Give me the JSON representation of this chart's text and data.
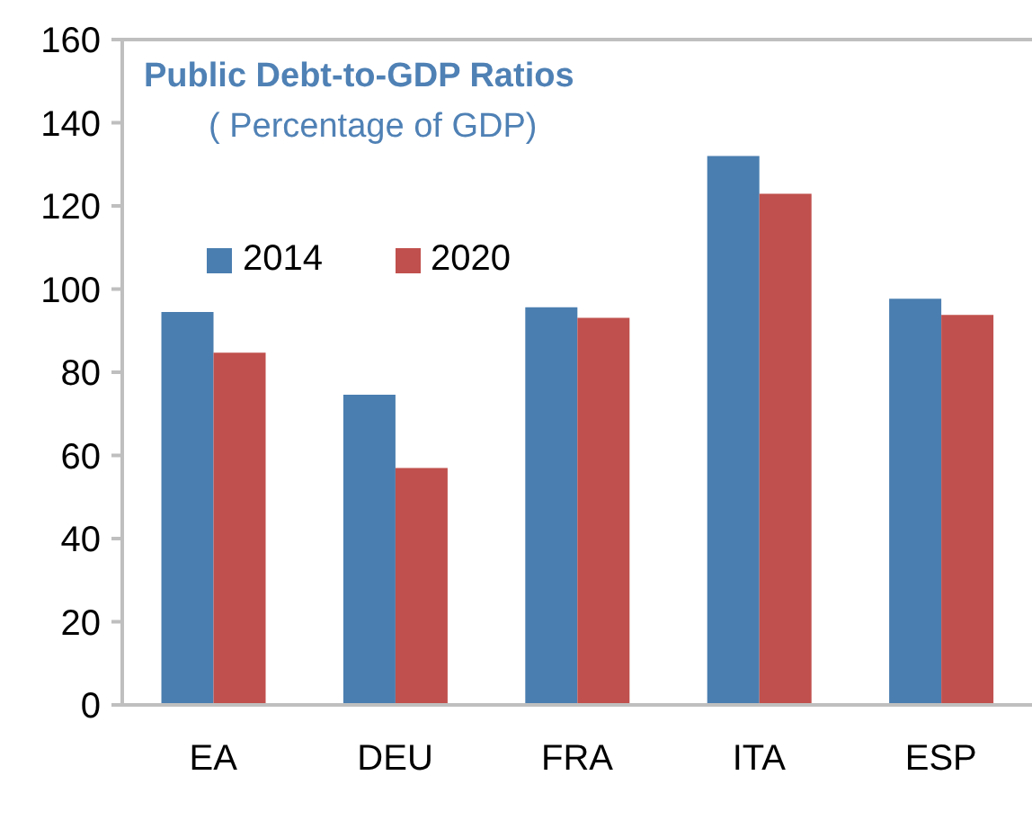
{
  "chart_data": {
    "type": "bar",
    "title": "Public Debt-to-GDP Ratios",
    "subtitle": "( Percentage of GDP)",
    "categories": [
      "EA",
      "DEU",
      "FRA",
      "ITA",
      "ESP"
    ],
    "series": [
      {
        "name": "2014",
        "color": "#4a7eb0",
        "values": [
          94.5,
          74.6,
          95.6,
          132.0,
          97.7
        ]
      },
      {
        "name": "2020",
        "color": "#c0504d",
        "values": [
          84.7,
          57.0,
          93.1,
          122.9,
          93.8
        ]
      }
    ],
    "ylim": [
      0,
      160
    ],
    "yticks": [
      0,
      20,
      40,
      60,
      80,
      100,
      120,
      140,
      160
    ],
    "legend": "top left"
  }
}
